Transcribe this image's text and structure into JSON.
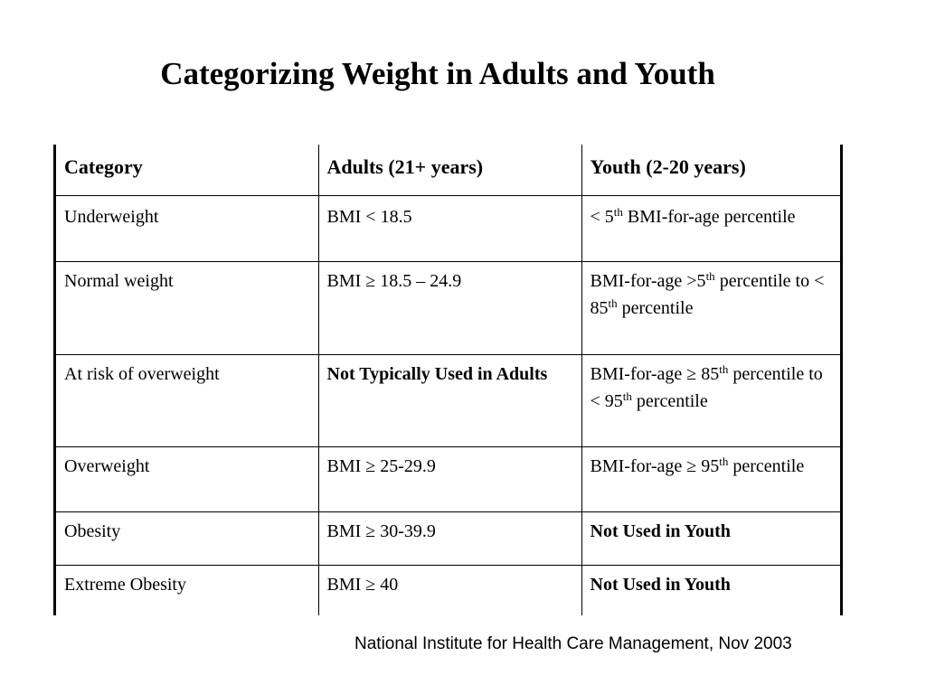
{
  "title": "Categorizing Weight in Adults and Youth",
  "table": {
    "headers": [
      "Category",
      "Adults (21+ years)",
      "Youth (2-20 years)"
    ],
    "rows": [
      {
        "category": "Underweight",
        "adults": "BMI < 18.5",
        "youth": {
          "p1": "< 5",
          "s1": "th",
          "p2": " BMI-for-age percentile",
          "s2": "",
          "p3": ""
        }
      },
      {
        "category": "Normal weight",
        "adults": "BMI ≥ 18.5 – 24.9",
        "youth": {
          "p1": "BMI-for-age >5",
          "s1": "th",
          "p2": " percentile to < 85",
          "s2": "th",
          "p3": " percentile"
        }
      },
      {
        "category": "At risk of overweight",
        "adults": "Not Typically Used in Adults",
        "youth": {
          "p1": "BMI-for-age ≥ 85",
          "s1": "th",
          "p2": " percentile to < 95",
          "s2": "th",
          "p3": " percentile"
        }
      },
      {
        "category": "Overweight",
        "adults": "BMI ≥ 25-29.9",
        "youth": {
          "p1": "BMI-for-age ≥ 95",
          "s1": "th",
          "p2": " percentile",
          "s2": "",
          "p3": ""
        }
      },
      {
        "category": "Obesity",
        "adults": "BMI ≥ 30-39.9",
        "youth": {
          "p1": "Not Used in Youth",
          "s1": "",
          "p2": "",
          "s2": "",
          "p3": ""
        }
      },
      {
        "category": "Extreme Obesity",
        "adults": "BMI ≥ 40",
        "youth": {
          "p1": "Not Used in Youth",
          "s1": "",
          "p2": "",
          "s2": "",
          "p3": ""
        }
      }
    ]
  },
  "citation": "National Institute for Health Care Management, Nov 2003"
}
